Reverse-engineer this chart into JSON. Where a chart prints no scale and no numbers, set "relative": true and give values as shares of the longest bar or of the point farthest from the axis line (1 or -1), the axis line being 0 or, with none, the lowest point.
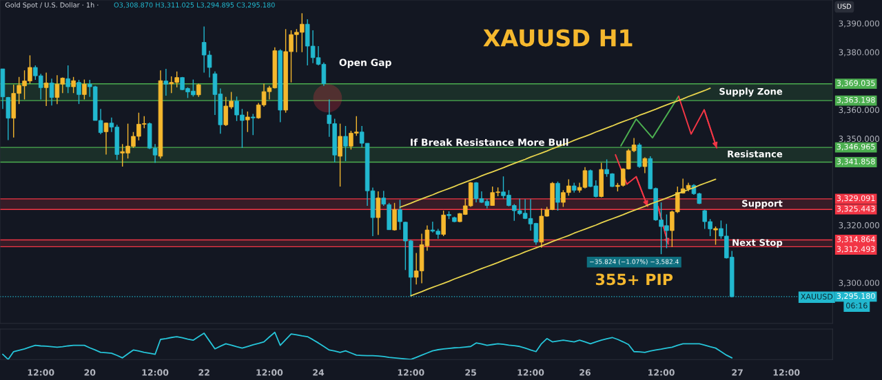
{
  "chart_data": [
    {
      "type": "candlestick",
      "title": "XAUUSD H1",
      "subtitle": "Gold Spot / U.S. Dollar · 1h ·",
      "annotations": [
        "O3,308.870 H3,311.025 L3,294.895 C3,295.180",
        "Open Gap",
        "If Break Resistance More Bull",
        "355+ PIP",
        "−35.824 (−1.07%) −3,582.4",
        "XAUUSD",
        "06:16",
        "USD"
      ],
      "categories": [
        null,
        null,
        null,
        null,
        null,
        null,
        null,
        null,
        null,
        null,
        null,
        null,
        null,
        null,
        null,
        null,
        null,
        null,
        null,
        null,
        null,
        null,
        null,
        null,
        null,
        null,
        null,
        null,
        null,
        null,
        null,
        null,
        null,
        null,
        null,
        null,
        null,
        null,
        null,
        null,
        null,
        null,
        null,
        null,
        null,
        null,
        null,
        null,
        null,
        null,
        null,
        null,
        null,
        null,
        null,
        null,
        null,
        null,
        null,
        null,
        null,
        null,
        null,
        null,
        null,
        null,
        null,
        null,
        null,
        null,
        null,
        null,
        null,
        null,
        null,
        null,
        null,
        null,
        null,
        null,
        null,
        null,
        null,
        null,
        null,
        null,
        null,
        null,
        null,
        null,
        null,
        null,
        null,
        null,
        null,
        null,
        null,
        null,
        null,
        null,
        null,
        null,
        null,
        null,
        null,
        null,
        null,
        null,
        null,
        null,
        null,
        null,
        null,
        null,
        null,
        null,
        null,
        null,
        null,
        null,
        null,
        null,
        null,
        null,
        null,
        null,
        null,
        null,
        null,
        null,
        null,
        null,
        null,
        null,
        null,
        null,
        null,
        null,
        null,
        null,
        null,
        null,
        null,
        null,
        null,
        null,
        null,
        null,
        null,
        null,
        null,
        null,
        null
      ],
      "ylim": [
        3285.9,
        3398.1
      ],
      "yticks": [
        {
          "value": 3390,
          "label": "3,390.000"
        },
        {
          "value": 3380,
          "label": "3,380.000"
        },
        {
          "value": 3360,
          "label": "3,360.000"
        },
        {
          "value": 3350,
          "label": "3,350.000"
        },
        {
          "value": 3320,
          "label": "3,320.000"
        },
        {
          "value": 3300,
          "label": "3,300.000"
        }
      ],
      "tick_labels": "y",
      "bands": [
        {
          "axis": "y",
          "from": 3363.198,
          "to": 3369.035,
          "label": "Supply Zone",
          "color": "#4caf50"
        },
        {
          "axis": "y",
          "from": 3341.858,
          "to": 3346.965,
          "label": "Resistance",
          "color": "#4caf50"
        },
        {
          "axis": "y",
          "from": 3325.443,
          "to": 3329.091,
          "label": "Support",
          "color": "#f23645"
        },
        {
          "axis": "y",
          "from": 3312.493,
          "to": 3314.864,
          "label": "Next Stop",
          "color": "#f23645"
        }
      ],
      "ref_lines": [
        {
          "axis": "y",
          "value": 3369.035,
          "label": "3,369.035",
          "color": "#4caf50",
          "line_style": "solid"
        },
        {
          "axis": "y",
          "value": 3363.198,
          "label": "3,363.198",
          "color": "#4caf50",
          "line_style": "solid"
        },
        {
          "axis": "y",
          "value": 3346.965,
          "label": "3,346.965",
          "color": "#4caf50",
          "line_style": "solid"
        },
        {
          "axis": "y",
          "value": 3341.858,
          "label": "3,341.858",
          "color": "#4caf50",
          "line_style": "solid"
        },
        {
          "axis": "y",
          "value": 3329.091,
          "label": "3,329.091",
          "color": "#f23645",
          "line_style": "solid"
        },
        {
          "axis": "y",
          "value": 3325.443,
          "label": "3,325.443",
          "color": "#f23645",
          "line_style": "solid"
        },
        {
          "axis": "y",
          "value": 3314.864,
          "label": "3,314.864",
          "color": "#f23645",
          "line_style": "solid"
        },
        {
          "axis": "y",
          "value": 3312.493,
          "label": "3,312.493",
          "color": "#f23645",
          "line_style": "solid"
        },
        {
          "axis": "y",
          "value": 3295.18,
          "label": "3,295.180",
          "color": "#22b8cf",
          "line_style": "dotted"
        }
      ],
      "series": [
        {
          "type": "candlestick",
          "colors": [
            "#22b8cf",
            "#22b8cf",
            "#f5b82e",
            "#f5b82e",
            "#f5b82e",
            "#f5b82e",
            "#22b8cf",
            "#22b8cf",
            "#f5b82e",
            "#22b8cf",
            "#f5b82e",
            "#f5b82e",
            "#22b8cf",
            "#f5b82e",
            "#22b8cf",
            "#f5b82e",
            "#22b8cf",
            "#22b8cf",
            "#22b8cf",
            "#f5b82e",
            "#22b8cf",
            "#22b8cf",
            "#f5b82e",
            "#f5b82e",
            "#f5b82e",
            "#f5b82e",
            "#f5b82e",
            "#22b8cf",
            "#22b8cf",
            "#f5b82e",
            "#22b8cf",
            "#f5b82e",
            "#f5b82e",
            "#22b8cf",
            "#22b8cf",
            "#22b8cf",
            "#f5b82e",
            "#22b8cf",
            "#22b8cf",
            "#22b8cf",
            "#22b8cf",
            "#f5b82e",
            "#f5b82e",
            "#22b8cf",
            "#22b8cf",
            "#f5b82e",
            "#22b8cf",
            "#f5b82e",
            "#f5b82e",
            "#f5b82e",
            "#f5b82e",
            "#22b8cf",
            "#f5b82e",
            "#f5b82e",
            "#f5b82e",
            "#f5b82e",
            "#22b8cf",
            "#22b8cf",
            "#22b8cf",
            "#22b8cf",
            "#22b8cf",
            "#22b8cf",
            "#f5b82e",
            "#22b8cf",
            "#f5b82e",
            "#f5b82e",
            "#22b8cf",
            "#22b8cf",
            "#22b8cf",
            "#f5b82e",
            "#22b8cf",
            "#22b8cf",
            "#f5b82e",
            "#22b8cf",
            "#22b8cf",
            "#22b8cf",
            "#f5b82e",
            "#f5b82e",
            "#f5b82e",
            "#22b8cf",
            "#22b8cf",
            "#f5b82e",
            "#22b8cf",
            "#22b8cf",
            "#f5b82e",
            "#f5b82e",
            "#f5b82e",
            "#22b8cf",
            "#22b8cf",
            "#22b8cf",
            "#f5b82e",
            "#f5b82e",
            "#22b8cf",
            "#22b8cf",
            "#22b8cf",
            "#22b8cf",
            "#22b8cf",
            "#22b8cf",
            "#22b8cf",
            "#f5b82e",
            "#f5b82e",
            "#f5b82e",
            "#22b8cf",
            "#f5b82e",
            "#f5b82e",
            "#22b8cf",
            "#f5b82e",
            "#f5b82e",
            "#22b8cf",
            "#22b8cf",
            "#f5b82e",
            "#22b8cf",
            "#22b8cf",
            "#f5b82e",
            "#f5b82e",
            "#f5b82e",
            "#f5b82e",
            "#22b8cf",
            "#f5b82e",
            "#22b8cf",
            "#22b8cf",
            "#22b8cf",
            "#22b8cf",
            "#f5b82e",
            "#f5b82e",
            "#f5b82e",
            "#f5b82e",
            "#22b8cf",
            "#22b8cf",
            "#22b8cf",
            "#22b8cf",
            "#f5b82e",
            "#22b8cf",
            "#22b8cf",
            "#22b8cf",
            null,
            null,
            null,
            null,
            null,
            null,
            null,
            null,
            null,
            null,
            null,
            null,
            null,
            null,
            null,
            null,
            null,
            null
          ],
          "ohlc": [
            [
              3374.2,
              3374.2,
              3360.3,
              3364.5
            ],
            [
              3364.3,
              3364.5,
              3349.5,
              3357.1
            ],
            [
              3357.1,
              3368.7,
              3350.4,
              3365.7
            ],
            [
              3365.7,
              3371.4,
              3362.0,
              3368.5
            ],
            [
              3368.3,
              3373.7,
              3363.6,
              3370.0
            ],
            [
              3370.0,
              3378.9,
              3369.1,
              3374.7
            ],
            [
              3374.7,
              3375.4,
              3370.4,
              3371.8
            ],
            [
              3371.8,
              3372.5,
              3363.6,
              3367.7
            ],
            [
              3367.7,
              3372.9,
              3361.3,
              3369.3
            ],
            [
              3369.3,
              3370.8,
              3361.5,
              3364.3
            ],
            [
              3364.3,
              3372.0,
              3362.0,
              3368.9
            ],
            [
              3368.9,
              3371.2,
              3365.8,
              3371.0
            ],
            [
              3370.8,
              3375.4,
              3365.8,
              3368.0
            ],
            [
              3368.0,
              3371.4,
              3365.8,
              3370.1
            ],
            [
              3369.5,
              3370.4,
              3362.0,
              3365.3
            ],
            [
              3365.3,
              3370.5,
              3363.6,
              3368.9
            ],
            [
              3368.9,
              3370.4,
              3364.5,
              3368.0
            ],
            [
              3368.0,
              3368.3,
              3356.3,
              3356.3
            ],
            [
              3356.3,
              3360.3,
              3351.5,
              3352.1
            ],
            [
              3352.4,
              3355.6,
              3344.5,
              3355.4
            ],
            [
              3355.4,
              3357.3,
              3352.3,
              3354.0
            ],
            [
              3354.0,
              3354.8,
              3342.6,
              3344.5
            ],
            [
              3345.0,
              3348.1,
              3340.3,
              3345.5
            ],
            [
              3345.0,
              3355.2,
              3343.1,
              3347.4
            ],
            [
              3347.3,
              3352.3,
              3346.8,
              3350.8
            ],
            [
              3350.8,
              3359.0,
              3349.4,
              3355.0
            ],
            [
              3355.0,
              3357.8,
              3353.6,
              3355.2
            ],
            [
              3355.2,
              3355.6,
              3346.4,
              3346.7
            ],
            [
              3346.7,
              3348.1,
              3341.6,
              3344.3
            ],
            [
              3343.9,
              3373.7,
              3343.1,
              3370.1
            ],
            [
              3370.0,
              3374.2,
              3364.9,
              3368.9
            ],
            [
              3369.0,
              3371.6,
              3365.8,
              3369.5
            ],
            [
              3369.5,
              3373.3,
              3367.8,
              3371.2
            ],
            [
              3371.2,
              3371.4,
              3366.8,
              3367.0
            ],
            [
              3367.4,
              3367.8,
              3364.1,
              3366.2
            ],
            [
              3366.5,
              3370.5,
              3364.6,
              3365.2
            ],
            [
              3365.2,
              3369.1,
              3364.5,
              3368.7
            ],
            [
              3383.4,
              3388.9,
              3372.9,
              3379.0
            ],
            [
              3379.0,
              3380.5,
              3371.2,
              3374.7
            ],
            [
              3372.5,
              3373.3,
              3358.2,
              3365.3
            ],
            [
              3365.5,
              3367.4,
              3351.7,
              3354.8
            ],
            [
              3354.8,
              3364.5,
              3354.4,
              3361.3
            ],
            [
              3361.0,
              3366.2,
              3360.3,
              3363.0
            ],
            [
              3363.0,
              3364.6,
              3356.1,
              3358.2
            ],
            [
              3358.2,
              3360.3,
              3346.8,
              3356.3
            ],
            [
              3356.5,
              3359.4,
              3352.3,
              3357.5
            ],
            [
              3357.5,
              3358.6,
              3351.2,
              3357.2
            ],
            [
              3357.2,
              3362.4,
              3356.9,
              3361.7
            ],
            [
              3361.7,
              3369.1,
              3361.1,
              3366.3
            ],
            [
              3366.3,
              3368.3,
              3363.6,
              3367.6
            ],
            [
              3367.6,
              3381.7,
              3367.4,
              3380.5
            ],
            [
              3380.5,
              3381.0,
              3355.7,
              3359.9
            ],
            [
              3359.9,
              3388.0,
              3359.0,
              3380.2
            ],
            [
              3380.2,
              3387.6,
              3369.5,
              3386.1
            ],
            [
              3386.1,
              3388.0,
              3380.0,
              3386.9
            ],
            [
              3386.9,
              3393.5,
              3380.0,
              3389.7
            ],
            [
              3389.7,
              3391.4,
              3375.4,
              3382.1
            ],
            [
              3382.1,
              3387.6,
              3376.2,
              3378.1
            ],
            [
              3378.1,
              3382.1,
              3375.4,
              3375.8
            ],
            [
              3375.8,
              3376.4,
              3368.3,
              3369.1
            ],
            [
              3358.2,
              3363.6,
              3350.6,
              3355.2
            ],
            [
              3355.2,
              3356.9,
              3341.8,
              3344.3
            ],
            [
              3343.9,
              3355.2,
              3333.4,
              3350.8
            ],
            [
              3350.8,
              3354.4,
              3342.2,
              3347.4
            ],
            [
              3347.4,
              3352.7,
              3346.2,
              3351.9
            ],
            [
              3351.9,
              3357.8,
              3351.0,
              3352.3
            ],
            [
              3352.3,
              3354.4,
              3347.0,
              3348.4
            ],
            [
              3348.4,
              3348.4,
              3326.7,
              3331.9
            ],
            [
              3331.9,
              3333.0,
              3316.2,
              3322.6
            ],
            [
              3322.6,
              3331.7,
              3316.6,
              3329.4
            ],
            [
              3329.4,
              3331.9,
              3326.7,
              3327.3
            ],
            [
              3327.1,
              3327.7,
              3318.3,
              3318.4
            ],
            [
              3318.3,
              3327.7,
              3318.1,
              3325.4
            ],
            [
              3325.4,
              3328.8,
              3318.4,
              3321.2
            ],
            [
              3321.0,
              3321.2,
              3304.4,
              3314.5
            ],
            [
              3314.5,
              3314.9,
              3295.2,
              3301.9
            ],
            [
              3301.9,
              3310.3,
              3299.4,
              3304.1
            ],
            [
              3304.1,
              3317.0,
              3299.8,
              3313.2
            ],
            [
              3312.8,
              3319.9,
              3311.1,
              3318.3
            ],
            [
              3318.3,
              3321.2,
              3317.4,
              3317.9
            ],
            [
              3317.9,
              3318.7,
              3315.3,
              3316.8
            ],
            [
              3316.8,
              3325.0,
              3316.2,
              3323.5
            ],
            [
              3323.7,
              3324.8,
              3322.1,
              3323.3
            ],
            [
              3322.6,
              3322.9,
              3321.0,
              3321.2
            ],
            [
              3321.2,
              3324.2,
              3321.0,
              3324.0
            ],
            [
              3323.7,
              3329.2,
              3323.5,
              3326.7
            ],
            [
              3326.7,
              3334.9,
              3326.3,
              3334.7
            ],
            [
              3334.7,
              3334.9,
              3327.9,
              3329.2
            ],
            [
              3329.2,
              3331.7,
              3327.7,
              3327.9
            ],
            [
              3328.2,
              3329.0,
              3325.8,
              3326.8
            ],
            [
              3326.8,
              3333.4,
              3326.7,
              3331.3
            ],
            [
              3331.3,
              3333.1,
              3330.0,
              3331.5
            ],
            [
              3331.5,
              3336.9,
              3329.2,
              3330.2
            ],
            [
              3330.4,
              3332.1,
              3326.5,
              3326.8
            ],
            [
              3326.8,
              3327.3,
              3321.5,
              3325.0
            ],
            [
              3325.0,
              3329.2,
              3323.5,
              3324.0
            ],
            [
              3324.1,
              3329.0,
              3322.1,
              3322.3
            ],
            [
              3322.3,
              3329.0,
              3318.1,
              3320.4
            ],
            [
              3320.6,
              3320.8,
              3313.2,
              3314.1
            ],
            [
              3314.1,
              3325.8,
              3312.2,
              3323.1
            ],
            [
              3323.1,
              3326.3,
              3322.9,
              3325.4
            ],
            [
              3325.4,
              3334.9,
              3325.2,
              3334.5
            ],
            [
              3334.5,
              3335.1,
              3325.0,
              3327.9
            ],
            [
              3327.9,
              3332.1,
              3326.3,
              3331.3
            ],
            [
              3331.3,
              3335.9,
              3330.2,
              3333.6
            ],
            [
              3333.6,
              3334.7,
              3331.3,
              3332.1
            ],
            [
              3332.1,
              3334.7,
              3331.3,
              3333.1
            ],
            [
              3333.1,
              3340.1,
              3332.7,
              3338.9
            ],
            [
              3338.9,
              3339.3,
              3333.2,
              3333.4
            ],
            [
              3333.6,
              3335.5,
              3329.6,
              3329.9
            ],
            [
              3329.9,
              3341.6,
              3329.6,
              3339.3
            ],
            [
              3339.3,
              3342.8,
              3336.8,
              3337.8
            ],
            [
              3337.8,
              3338.0,
              3333.2,
              3333.4
            ],
            [
              3333.4,
              3334.6,
              3331.7,
              3333.8
            ],
            [
              3333.8,
              3339.7,
              3333.4,
              3339.5
            ],
            [
              3339.5,
              3346.4,
              3339.3,
              3345.8
            ],
            [
              3345.8,
              3350.2,
              3345.3,
              3347.8
            ],
            [
              3347.8,
              3348.5,
              3339.9,
              3340.3
            ],
            [
              3340.3,
              3343.5,
              3338.0,
              3343.1
            ],
            [
              3343.1,
              3343.9,
              3332.4,
              3332.6
            ],
            [
              3332.7,
              3333.0,
              3321.5,
              3321.8
            ],
            [
              3321.8,
              3327.9,
              3309.9,
              3319.5
            ],
            [
              3319.8,
              3323.7,
              3312.0,
              3318.1
            ],
            [
              3318.1,
              3325.0,
              3312.4,
              3324.6
            ],
            [
              3324.6,
              3333.4,
              3324.2,
              3331.3
            ],
            [
              3331.1,
              3336.1,
              3330.9,
              3332.6
            ],
            [
              3332.6,
              3334.7,
              3331.7,
              3333.8
            ],
            [
              3333.8,
              3334.2,
              3330.5,
              3330.9
            ],
            [
              3330.9,
              3331.2,
              3327.3,
              3327.5
            ],
            [
              3325.0,
              3325.4,
              3318.7,
              3321.2
            ],
            [
              3321.2,
              3322.1,
              3316.2,
              3318.7
            ],
            [
              3318.3,
              3319.5,
              3313.2,
              3318.8
            ],
            [
              3318.8,
              3321.6,
              3315.3,
              3316.2
            ],
            [
              3316.2,
              3320.4,
              3308.4,
              3308.6
            ],
            [
              3308.87,
              3311.025,
              3294.895,
              3295.18
            ],
            null,
            null,
            null,
            null,
            null,
            null,
            null,
            null,
            null,
            null,
            null,
            null,
            null,
            null,
            null,
            null,
            null,
            null
          ]
        },
        {
          "type": "line",
          "color": "#e8d44d",
          "values": [
            null,
            null,
            null,
            null,
            null,
            null,
            null,
            null,
            null,
            null,
            null,
            null,
            null,
            null,
            null,
            null,
            null,
            null,
            null,
            null,
            null,
            null,
            null,
            null,
            null,
            null,
            null,
            null,
            null,
            null,
            null,
            null,
            null,
            null,
            null,
            null,
            null,
            null,
            null,
            null,
            null,
            null,
            null,
            null,
            null,
            null,
            null,
            null,
            null,
            null,
            null,
            null,
            null,
            null,
            null,
            null,
            null,
            null,
            null,
            null,
            null,
            null,
            null,
            null,
            null,
            null,
            null,
            null,
            null,
            null,
            null,
            null,
            null,
            3326.2,
            3326.9,
            3327.6,
            3328.4,
            3329.1,
            3329.8,
            3330.5,
            3331.3,
            3332.0,
            3332.7,
            3333.4,
            3334.2,
            3334.9,
            3335.6,
            3336.3,
            3337.1,
            3337.8,
            3338.5,
            3339.2,
            3339.9,
            3340.7,
            3341.4,
            3342.1,
            3342.8,
            3343.6,
            3344.3,
            3345.0,
            3345.7,
            3346.5,
            3347.2,
            3347.9,
            3348.6,
            3349.4,
            3350.1,
            3350.8,
            3351.5,
            3352.3,
            3353.0,
            3353.7,
            3354.4,
            3355.2,
            3355.9,
            3356.6,
            3357.3,
            3358.1,
            3358.8,
            3359.5,
            3360.2,
            3361.0,
            3361.7,
            3362.4,
            3363.1,
            3363.8,
            3364.6,
            3365.3,
            3366.0,
            3366.7,
            3367.5,
            null,
            null,
            null,
            null,
            null,
            null,
            null,
            null,
            null,
            null,
            null,
            null,
            null,
            null,
            null,
            null,
            null,
            null,
            null,
            null,
            null,
            null
          ]
        },
        {
          "type": "line",
          "color": "#e8d44d",
          "values": [
            null,
            null,
            null,
            null,
            null,
            null,
            null,
            null,
            null,
            null,
            null,
            null,
            null,
            null,
            null,
            null,
            null,
            null,
            null,
            null,
            null,
            null,
            null,
            null,
            null,
            null,
            null,
            null,
            null,
            null,
            null,
            null,
            null,
            null,
            null,
            null,
            null,
            null,
            null,
            null,
            null,
            null,
            null,
            null,
            null,
            null,
            null,
            null,
            null,
            null,
            null,
            null,
            null,
            null,
            null,
            null,
            null,
            null,
            null,
            null,
            null,
            null,
            null,
            null,
            null,
            null,
            null,
            null,
            null,
            null,
            null,
            null,
            null,
            null,
            null,
            3295.5,
            3296.2,
            3296.9,
            3297.7,
            3298.4,
            3299.1,
            3299.8,
            3300.5,
            3301.3,
            3302.0,
            3302.7,
            3303.4,
            3304.2,
            3304.9,
            3305.6,
            3306.3,
            3307.0,
            3307.8,
            3308.5,
            3309.2,
            3309.9,
            3310.7,
            3311.4,
            3312.1,
            3312.8,
            3313.5,
            3314.3,
            3315.0,
            3315.7,
            3316.4,
            3317.2,
            3317.9,
            3318.6,
            3319.3,
            3320.0,
            3320.8,
            3321.5,
            3322.2,
            3322.9,
            3323.6,
            3324.4,
            3325.1,
            3325.8,
            3326.5,
            3327.3,
            3328.0,
            3328.7,
            3329.4,
            3330.1,
            3330.9,
            3331.6,
            3332.3,
            3333.0,
            3333.8,
            3334.5,
            3335.2,
            3335.9,
            null,
            null,
            null,
            null,
            null,
            null,
            null,
            null,
            null,
            null,
            null,
            null,
            null,
            null,
            null,
            null,
            null,
            null,
            null,
            null,
            null
          ]
        }
      ]
    },
    {
      "type": "line",
      "relative": true,
      "tick_labels": "x",
      "categories": [
        null,
        null,
        null,
        null,
        null,
        null,
        null,
        "12:00",
        null,
        null,
        null,
        null,
        null,
        null,
        null,
        null,
        "20",
        null,
        null,
        null,
        null,
        null,
        null,
        null,
        null,
        null,
        null,
        null,
        "12:00",
        null,
        null,
        null,
        null,
        null,
        null,
        null,
        null,
        "22",
        null,
        null,
        null,
        null,
        null,
        null,
        null,
        null,
        null,
        null,
        null,
        "12:00",
        null,
        null,
        null,
        null,
        null,
        null,
        null,
        null,
        "24",
        null,
        null,
        null,
        null,
        null,
        null,
        null,
        null,
        null,
        null,
        null,
        null,
        null,
        null,
        null,
        null,
        "12:00",
        null,
        null,
        null,
        null,
        null,
        null,
        null,
        null,
        null,
        null,
        "25",
        null,
        null,
        null,
        null,
        null,
        null,
        null,
        null,
        null,
        null,
        "12:00",
        null,
        null,
        null,
        null,
        null,
        null,
        null,
        null,
        null,
        "26",
        null,
        null,
        null,
        null,
        null,
        null,
        null,
        null,
        null,
        null,
        null,
        null,
        null,
        "12:00",
        null,
        null,
        null,
        null,
        null,
        null,
        null,
        null,
        null,
        null,
        null,
        null,
        null,
        "27",
        null,
        null,
        null,
        null,
        null,
        null,
        null,
        null,
        "12:00",
        null,
        null,
        null,
        null,
        null,
        null,
        null,
        null
      ],
      "series": [
        {
          "color": "#26c6da",
          "values": [
            0.19,
            0,
            0.29,
            0.34,
            0.39,
            0.46,
            0.52,
            0.5,
            0.49,
            0.47,
            0.45,
            0.47,
            0.5,
            0.52,
            0.52,
            0.52,
            0.43,
            0.35,
            0.26,
            0.25,
            0.23,
            0.15,
            0.06,
            0.21,
            0.35,
            0.31,
            0.26,
            0.23,
            0.19,
            0.74,
            0.77,
            0.81,
            0.84,
            0.8,
            0.75,
            0.71,
            0.84,
            0.97,
            0.68,
            0.39,
            0.49,
            0.58,
            0.53,
            0.47,
            0.42,
            0.48,
            0.54,
            0.59,
            0.65,
            0.83,
            1,
            0.52,
            0.73,
            0.94,
            0.91,
            0.87,
            0.84,
            0.73,
            0.61,
            0.48,
            0.35,
            0.31,
            0.26,
            0.32,
            0.24,
            0.16,
            0.15,
            0.14,
            0.14,
            0.13,
            0.11,
            0.08,
            0.06,
            0.04,
            0.02,
            0,
            0.08,
            0.16,
            0.24,
            0.32,
            0.36,
            0.39,
            0.41,
            0.43,
            0.44,
            0.46,
            0.48,
            0.61,
            0.57,
            0.52,
            0.55,
            0.58,
            0.56,
            0.53,
            0.51,
            0.48,
            0.42,
            0.35,
            0.29,
            0.58,
            0.77,
            0.65,
            0.68,
            0.71,
            0.68,
            0.65,
            0.71,
            0.65,
            0.58,
            0.65,
            0.71,
            0.76,
            0.81,
            0.74,
            0.65,
            0.55,
            0.29,
            0.28,
            0.26,
            0.31,
            0.35,
            0.38,
            0.42,
            0.45,
            0.52,
            0.58,
            0.58,
            0.58,
            0.58,
            0.53,
            0.47,
            0.42,
            0.29,
            0.16,
            0.06,
            null,
            null,
            null,
            null,
            null,
            null,
            null,
            null,
            null,
            null,
            null,
            null,
            null,
            null,
            null,
            null,
            null,
            null
          ]
        }
      ]
    }
  ]
}
